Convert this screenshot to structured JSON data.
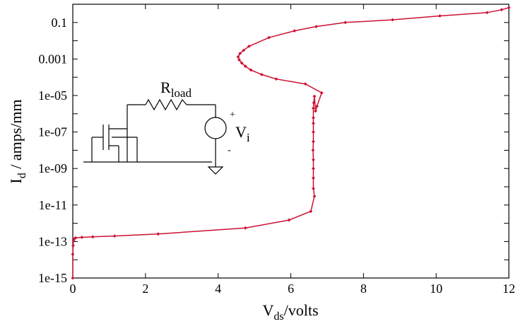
{
  "chart_data": {
    "type": "line",
    "title": "",
    "xlabel": {
      "main": "V",
      "sub": "ds",
      "suffix": "/volts"
    },
    "ylabel": {
      "main": "I",
      "sub": "d",
      "suffix": " / amps/mm"
    },
    "xlim": [
      0,
      12
    ],
    "ylim": [
      1e-15,
      1
    ],
    "yscale": "log",
    "grid": false,
    "x_ticks": [
      "0",
      "2",
      "4",
      "6",
      "8",
      "10",
      "12"
    ],
    "y_ticks": [
      "0.1",
      "0.001",
      "1e-05",
      "1e-07",
      "1e-09",
      "1e-11",
      "1e-13",
      "1e-15"
    ],
    "line_color": "#cc1133",
    "series": [
      {
        "x": [
          0.0,
          0.0,
          0.01,
          0.02,
          0.04,
          0.08,
          0.25,
          0.55,
          1.15,
          2.35,
          4.75,
          5.95,
          6.55,
          6.65,
          6.62,
          6.62,
          6.62,
          6.62,
          6.61,
          6.62,
          6.62,
          6.62,
          6.62,
          6.62,
          6.63,
          6.65,
          6.68,
          6.72,
          6.85,
          6.4,
          5.6,
          5.2,
          4.9,
          4.75,
          4.65,
          4.58,
          4.55,
          4.6,
          4.7,
          4.85,
          5.4,
          6.1,
          6.7,
          7.5,
          8.8,
          10.1,
          11.4,
          11.8,
          12.0
        ],
        "y": [
          1e-15,
          2e-14,
          6e-14,
          1.1e-13,
          1.4e-13,
          1.6e-13,
          1.7e-13,
          1.8e-13,
          2e-13,
          2.6e-13,
          5.5e-13,
          1.5e-12,
          4.5e-12,
          3e-11,
          8e-11,
          3e-10,
          1e-09,
          3e-09,
          1e-08,
          3e-08,
          1e-07,
          3e-07,
          6e-07,
          2e-06,
          4e-06,
          9e-06,
          1.4e-06,
          2.6e-06,
          1.4e-05,
          4.3e-05,
          8e-05,
          0.00014,
          0.00025,
          0.0004,
          0.0006,
          0.0009,
          0.0013,
          0.002,
          0.003,
          0.005,
          0.015,
          0.035,
          0.06,
          0.1,
          0.14,
          0.23,
          0.35,
          0.5,
          0.65
        ]
      }
    ]
  },
  "inset": {
    "resistor_label": {
      "main": "R",
      "sub": "load"
    },
    "source_label": {
      "main": "V",
      "sub": "i"
    },
    "plus_sign": "+",
    "minus_sign": "-"
  }
}
